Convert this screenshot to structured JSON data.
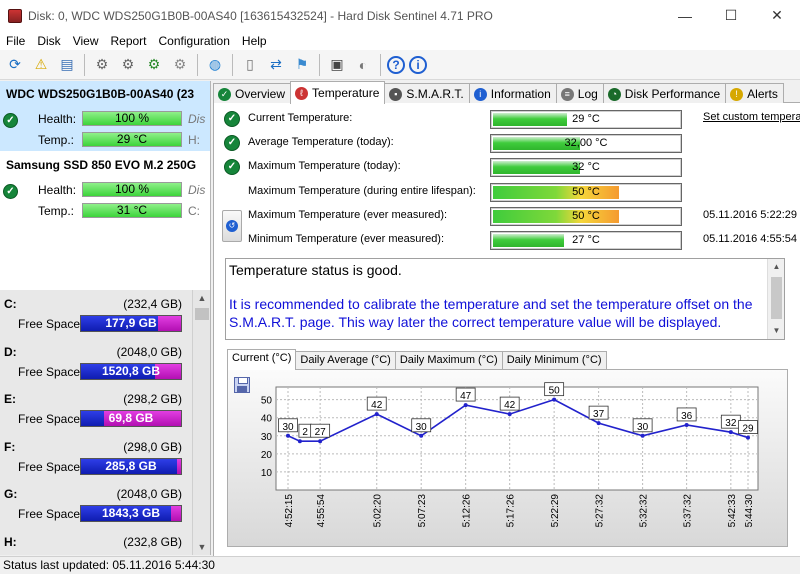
{
  "window": {
    "title": "Disk: 0, WDC WDS250G1B0B-00AS40 [163615432524]  -  Hard Disk Sentinel 4.71 PRO",
    "minimize": "—",
    "maximize": "☐",
    "close": "✕"
  },
  "menu": [
    "File",
    "Disk",
    "View",
    "Report",
    "Configuration",
    "Help"
  ],
  "toolbar": [
    {
      "icon": "refresh-icon",
      "glyph": "⟳",
      "color": "#1b6fc4"
    },
    {
      "icon": "warning-icon",
      "glyph": "⚠",
      "color": "#d6a800"
    },
    {
      "icon": "disk-report-icon",
      "glyph": "▤",
      "color": "#3a6fb4"
    },
    {
      "icon": "test-icon",
      "glyph": "⚙",
      "color": "#666"
    },
    {
      "icon": "test-icon-2",
      "glyph": "⚙",
      "color": "#666"
    },
    {
      "icon": "test-ok-icon",
      "glyph": "⚙",
      "color": "#2a8a2a"
    },
    {
      "icon": "test-stop-icon",
      "glyph": "⚙",
      "color": "#888"
    },
    {
      "icon": "globe-icon",
      "glyph": "◍",
      "color": "#1f7fd1"
    },
    {
      "icon": "document-icon",
      "glyph": "▯",
      "color": "#777"
    },
    {
      "icon": "sync-icon",
      "glyph": "⇄",
      "color": "#1b6fc4"
    },
    {
      "icon": "network-icon",
      "glyph": "⚑",
      "color": "#3a8ad0"
    },
    {
      "icon": "monitor-icon",
      "glyph": "▣",
      "color": "#444"
    },
    {
      "icon": "speaker-icon",
      "glyph": "◐",
      "color": "#777"
    },
    {
      "icon": "help-icon",
      "glyph": "?",
      "color": "#1f5fd1"
    },
    {
      "icon": "info-icon",
      "glyph": "i",
      "color": "#1f5fd1"
    }
  ],
  "disks": [
    {
      "name": "WDC WDS250G1B0B-00AS40 (23",
      "health_label": "Health:",
      "health": "100 %",
      "health_suffix": "Dis",
      "temp_label": "Temp.:",
      "temp": "29 °C",
      "temp_suffix": "H:",
      "selected": true
    },
    {
      "name": "Samsung SSD 850 EVO M.2 250G",
      "health_label": "Health:",
      "health": "100 %",
      "health_suffix": "Dis",
      "temp_label": "Temp.:",
      "temp": "31 °C",
      "temp_suffix": "C:",
      "selected": false
    }
  ],
  "volumes": [
    {
      "letter": "C:",
      "size": "(232,4 GB)",
      "label": "Free Space",
      "free": "177,9 GB",
      "free_fraction": 0.77
    },
    {
      "letter": "D:",
      "size": "(2048,0 GB)",
      "label": "Free Space",
      "free": "1520,8 GB",
      "free_fraction": 0.74
    },
    {
      "letter": "E:",
      "size": "(298,2 GB)",
      "label": "Free Space",
      "free": "69,8 GB",
      "free_fraction": 0.23
    },
    {
      "letter": "F:",
      "size": "(298,0 GB)",
      "label": "Free Space",
      "free": "285,8 GB",
      "free_fraction": 0.96
    },
    {
      "letter": "G:",
      "size": "(2048,0 GB)",
      "label": "Free Space",
      "free": "1843,3 GB",
      "free_fraction": 0.9
    },
    {
      "letter": "H:",
      "size": "(232,8 GB)",
      "label": "",
      "free": "",
      "free_fraction": 0
    }
  ],
  "tabs": [
    {
      "label": "Overview",
      "icon": "check-icon",
      "color": "#16853a",
      "active": false
    },
    {
      "label": "Temperature",
      "icon": "thermometer-icon",
      "color": "#c33",
      "active": true
    },
    {
      "label": "S.M.A.R.T.",
      "icon": "chip-icon",
      "color": "#555",
      "active": false
    },
    {
      "label": "Information",
      "icon": "info-icon",
      "color": "#1f5fd1",
      "active": false
    },
    {
      "label": "Log",
      "icon": "log-icon",
      "color": "#777",
      "active": false
    },
    {
      "label": "Disk Performance",
      "icon": "gauge-icon",
      "color": "#1a6a2a",
      "active": false
    },
    {
      "label": "Alerts",
      "icon": "alert-icon",
      "color": "#d6a800",
      "active": false
    }
  ],
  "temperature": {
    "set_custom": "Set custom tempera",
    "rows": [
      {
        "label": "Current Temperature:",
        "value": "29 °C",
        "fill": 0.4,
        "warm": false,
        "ok": true,
        "date": ""
      },
      {
        "label": "Average Temperature (today):",
        "value": "32,00 °C",
        "fill": 0.47,
        "warm": false,
        "ok": true,
        "date": ""
      },
      {
        "label": "Maximum Temperature (today):",
        "value": "32 °C",
        "fill": 0.47,
        "warm": false,
        "ok": true,
        "date": ""
      },
      {
        "label": "Maximum Temperature (during entire lifespan):",
        "value": "50 °C",
        "fill": 0.68,
        "warm": true,
        "ok": false,
        "date": ""
      },
      {
        "label": "Maximum Temperature (ever measured):",
        "value": "50 °C",
        "fill": 0.68,
        "warm": true,
        "ok": false,
        "date": "05.11.2016 5:22:29"
      },
      {
        "label": "Minimum Temperature (ever measured):",
        "value": "27 °C",
        "fill": 0.38,
        "warm": false,
        "ok": false,
        "date": "05.11.2016 4:55:54"
      }
    ],
    "status": "Temperature status is good.",
    "advice": "It is recommended to calibrate the temperature and set the temperature offset on the S.M.A.R.T. page. This way later the correct temperature value will be displayed."
  },
  "chart_tabs": [
    "Current (°C)",
    "Daily Average (°C)",
    "Daily Maximum (°C)",
    "Daily Minimum (°C)"
  ],
  "chart_data": {
    "type": "line",
    "x": [
      "4:52:15",
      "4:55:54",
      "5:02:20",
      "5:07:23",
      "5:12:26",
      "5:17:26",
      "5:22:29",
      "5:27:32",
      "5:32:32",
      "5:37:32",
      "5:42:33",
      "5:44:30"
    ],
    "x_numeric_min": [
      292.25,
      295.9,
      302.33,
      307.38,
      312.43,
      317.43,
      322.48,
      327.53,
      332.53,
      337.53,
      342.55,
      344.5
    ],
    "points": [
      {
        "t": 292.25,
        "v": 30
      },
      {
        "t": 293.6,
        "v": 27
      },
      {
        "t": 295.9,
        "v": 27
      },
      {
        "t": 302.33,
        "v": 42
      },
      {
        "t": 307.38,
        "v": 30
      },
      {
        "t": 312.43,
        "v": 47
      },
      {
        "t": 317.43,
        "v": 42
      },
      {
        "t": 322.48,
        "v": 50
      },
      {
        "t": 327.53,
        "v": 37
      },
      {
        "t": 332.53,
        "v": 30
      },
      {
        "t": 337.53,
        "v": 36
      },
      {
        "t": 342.55,
        "v": 32
      },
      {
        "t": 344.5,
        "v": 29
      }
    ],
    "labels": [
      {
        "t": 292.25,
        "text": "30"
      },
      {
        "t": 294.2,
        "text": "2"
      },
      {
        "t": 295.9,
        "text": "27"
      },
      {
        "t": 302.33,
        "text": "42"
      },
      {
        "t": 307.38,
        "text": "30"
      },
      {
        "t": 312.43,
        "text": "47"
      },
      {
        "t": 317.43,
        "text": "42"
      },
      {
        "t": 322.48,
        "text": "50"
      },
      {
        "t": 327.53,
        "text": "37"
      },
      {
        "t": 332.53,
        "text": "30"
      },
      {
        "t": 337.53,
        "text": "36"
      },
      {
        "t": 342.55,
        "text": "32"
      },
      {
        "t": 344.5,
        "text": "29"
      }
    ],
    "y_ticks": [
      10,
      20,
      30,
      40,
      50
    ],
    "ylim": [
      0,
      57
    ],
    "grid": true,
    "line_color": "#2222cc"
  },
  "status_bar": "Status last updated: 05.11.2016 5:44:30"
}
